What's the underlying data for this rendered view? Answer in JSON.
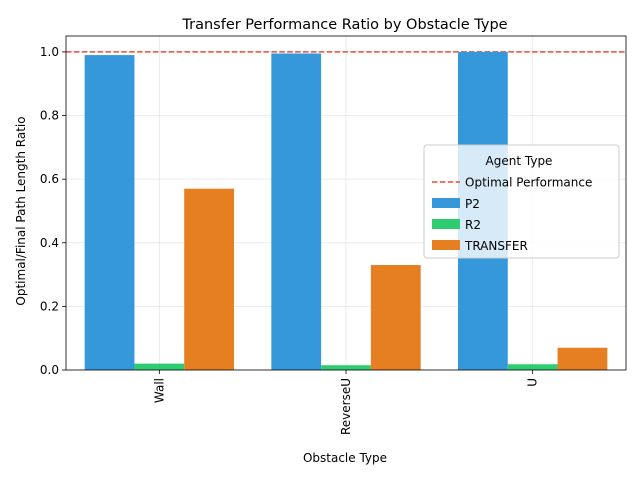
{
  "chart_data": {
    "type": "bar",
    "title": "Transfer Performance Ratio by Obstacle Type",
    "xlabel": "Obstacle Type",
    "ylabel": "Optimal/Final Path Length Ratio",
    "categories": [
      "Wall",
      "ReverseU",
      "U"
    ],
    "series": [
      {
        "name": "P2",
        "color": "#3498db",
        "values": [
          0.99,
          0.995,
          1.0
        ]
      },
      {
        "name": "R2",
        "color": "#2ecc71",
        "values": [
          0.02,
          0.015,
          0.018
        ]
      },
      {
        "name": "TRANSFER",
        "color": "#e67e22",
        "values": [
          0.57,
          0.33,
          0.07
        ]
      }
    ],
    "reference_line": {
      "name": "Optimal Performance",
      "value": 1.0,
      "color": "#e74c3c",
      "style": "dashed"
    },
    "ylim": [
      0,
      1.05
    ],
    "yticks": [
      0.0,
      0.2,
      0.4,
      0.6,
      0.8,
      1.0
    ],
    "ytick_labels": [
      "0.0",
      "0.2",
      "0.4",
      "0.6",
      "0.8",
      "1.0"
    ],
    "grid": true,
    "legend": {
      "title": "Agent Type",
      "placement": "center-right"
    }
  }
}
